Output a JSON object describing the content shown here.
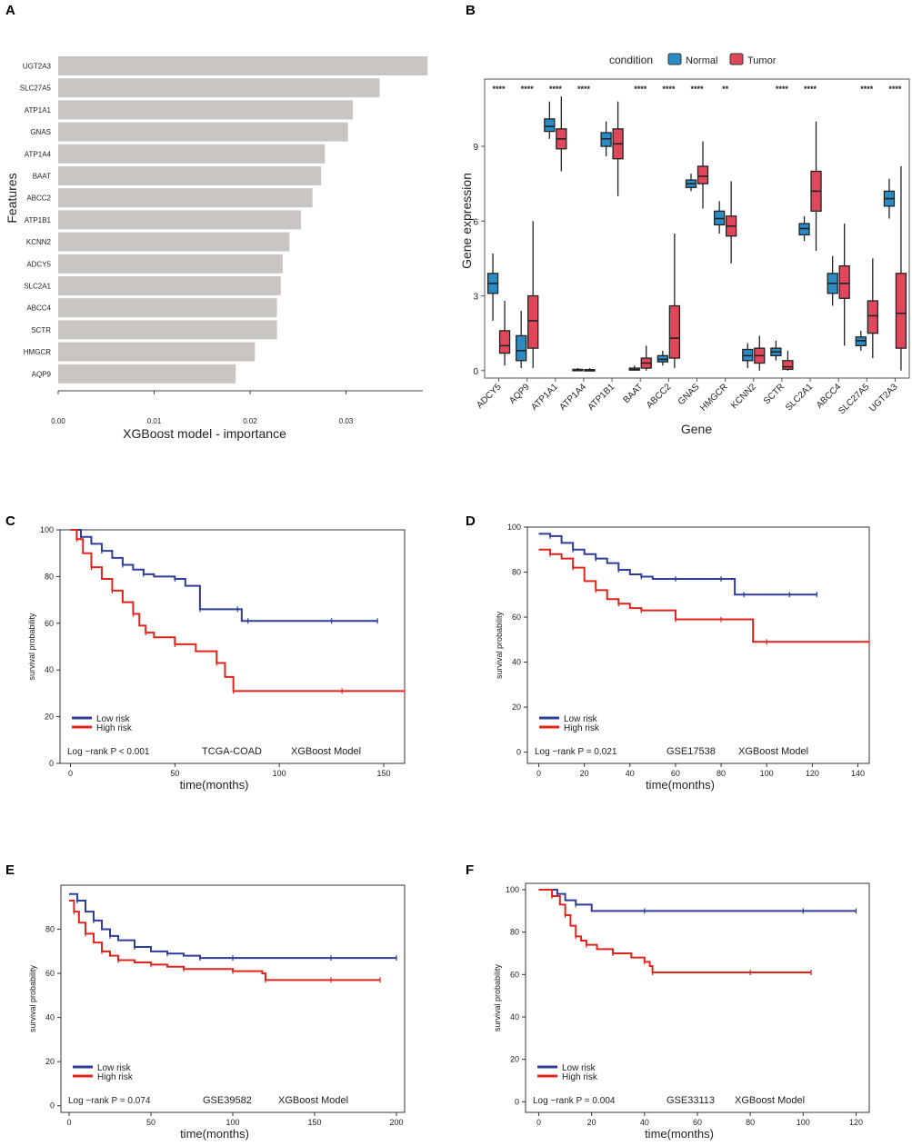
{
  "panel_labels": {
    "a": "A",
    "b": "B",
    "c": "C",
    "d": "D",
    "e": "E",
    "f": "F"
  },
  "colors": {
    "bar": "#c8c5c2",
    "normal": "#2b8cc4",
    "tumor": "#e0475b",
    "low": "#2e3c9a",
    "high": "#e0241b"
  },
  "chart_data": [
    {
      "id": "A",
      "type": "bar",
      "orientation": "horizontal",
      "categories": [
        "UGT2A3",
        "SLC27A5",
        "ATP1A1",
        "GNAS",
        "ATP1A4",
        "BAAT",
        "ABCC2",
        "ATP1B1",
        "KCNN2",
        "ADCY5",
        "SLC2A1",
        "ABCC4",
        "SCTR",
        "HMGCR",
        "AQP9"
      ],
      "values": [
        0.0385,
        0.0335,
        0.0307,
        0.0302,
        0.0278,
        0.0274,
        0.0265,
        0.0253,
        0.0241,
        0.0234,
        0.0232,
        0.0228,
        0.0228,
        0.0205,
        0.0185
      ],
      "xlabel": "XGBoost model - importance",
      "ylabel": "Features",
      "xlim": [
        0,
        0.038
      ],
      "xticks": [
        "0.00",
        "0.01",
        "0.02",
        "0.03"
      ]
    },
    {
      "id": "B",
      "type": "box",
      "legend_title": "condition",
      "legend": [
        "Normal",
        "Tumor"
      ],
      "xlabel": "Gene",
      "ylabel": "Gene expression",
      "ylim": [
        -0.3,
        11.7
      ],
      "yticks": [
        "0",
        "3",
        "6",
        "9"
      ],
      "categories": [
        "ADCY5",
        "AQP9",
        "ATP1A1",
        "ATP1A4",
        "ATP1B1",
        "BAAT",
        "ABCC2",
        "GNAS",
        "HMGCR",
        "KCNN2",
        "SCTR",
        "SLC2A1",
        "ABCC4",
        "SLC27A5",
        "UGT2A3"
      ],
      "significance": [
        "****",
        "****",
        "****",
        "****",
        "",
        "****",
        "****",
        "****",
        "**",
        "",
        "****",
        "****",
        "",
        "****",
        "****"
      ],
      "series": [
        {
          "name": "Normal",
          "boxes": [
            [
              2.0,
              3.1,
              3.5,
              3.9,
              4.7
            ],
            [
              0.1,
              0.4,
              0.8,
              1.4,
              2.4
            ],
            [
              9.3,
              9.6,
              9.8,
              10.1,
              10.8
            ],
            [
              0,
              0.01,
              0.03,
              0.05,
              0.1
            ],
            [
              8.6,
              9.0,
              9.3,
              9.55,
              10.0
            ],
            [
              0,
              0.02,
              0.04,
              0.1,
              0.2
            ],
            [
              0.2,
              0.35,
              0.45,
              0.6,
              0.8
            ],
            [
              7.2,
              7.35,
              7.5,
              7.65,
              7.9
            ],
            [
              5.5,
              5.85,
              6.1,
              6.4,
              6.8
            ],
            [
              0.1,
              0.4,
              0.6,
              0.85,
              1.1
            ],
            [
              0.4,
              0.6,
              0.75,
              0.9,
              1.2
            ],
            [
              5.2,
              5.45,
              5.7,
              5.9,
              6.2
            ],
            [
              2.6,
              3.1,
              3.5,
              3.9,
              4.6
            ],
            [
              0.8,
              1.0,
              1.2,
              1.35,
              1.6
            ],
            [
              6.1,
              6.6,
              6.9,
              7.2,
              7.7
            ]
          ]
        },
        {
          "name": "Tumor",
          "boxes": [
            [
              0.2,
              0.7,
              1.0,
              1.6,
              2.8
            ],
            [
              0.1,
              0.9,
              2.0,
              3.0,
              6.0
            ],
            [
              8.0,
              8.9,
              9.3,
              9.7,
              11.0
            ],
            [
              0,
              0,
              0.02,
              0.04,
              0.1
            ],
            [
              7.0,
              8.5,
              9.1,
              9.7,
              10.8
            ],
            [
              0,
              0.1,
              0.3,
              0.5,
              1.0
            ],
            [
              0.1,
              0.5,
              1.3,
              2.6,
              5.5
            ],
            [
              6.5,
              7.5,
              7.8,
              8.2,
              9.2
            ],
            [
              4.3,
              5.4,
              5.8,
              6.2,
              7.6
            ],
            [
              0,
              0.3,
              0.6,
              0.9,
              1.4
            ],
            [
              0,
              0.05,
              0.15,
              0.4,
              0.8
            ],
            [
              4.8,
              6.4,
              7.2,
              8.0,
              10.0
            ],
            [
              1.0,
              2.9,
              3.5,
              4.2,
              5.9
            ],
            [
              0.5,
              1.5,
              2.2,
              2.8,
              4.5
            ],
            [
              0,
              0.9,
              2.3,
              3.9,
              8.2
            ]
          ]
        }
      ]
    },
    {
      "id": "C",
      "type": "line",
      "subtype": "kaplan-meier",
      "xlabel": "time(months)",
      "ylabel": "survival probability",
      "xlim": [
        -5,
        160
      ],
      "ylim": [
        0,
        100
      ],
      "xticks": [
        "0",
        "50",
        "100",
        "150"
      ],
      "yticks": [
        "0",
        "20",
        "40",
        "60",
        "80",
        "100"
      ],
      "legend": [
        "Low risk",
        "High risk"
      ],
      "annotations": [
        "Log −rank P < 0.001",
        "TCGA-COAD",
        "XGBoost Model"
      ],
      "series": [
        {
          "name": "Low risk",
          "x": [
            0,
            5,
            10,
            15,
            20,
            25,
            30,
            35,
            40,
            50,
            55,
            62,
            70,
            80,
            82,
            85,
            100,
            125,
            140,
            147
          ],
          "y": [
            100,
            97,
            94,
            91,
            88,
            85,
            83,
            81,
            80,
            79,
            76,
            66,
            66,
            66,
            61,
            61,
            61,
            61,
            61,
            61
          ]
        },
        {
          "name": "High risk",
          "x": [
            0,
            3,
            6,
            10,
            15,
            20,
            25,
            30,
            33,
            36,
            40,
            50,
            60,
            70,
            74,
            78,
            100,
            130,
            150,
            160
          ],
          "y": [
            100,
            96,
            90,
            84,
            79,
            74,
            69,
            64,
            59,
            56,
            54,
            51,
            48,
            43,
            37,
            31,
            31,
            31,
            31,
            31
          ]
        }
      ]
    },
    {
      "id": "D",
      "type": "line",
      "subtype": "kaplan-meier",
      "xlabel": "time(months)",
      "ylabel": "survival probability",
      "xlim": [
        -5,
        145
      ],
      "ylim": [
        -5,
        100
      ],
      "xticks": [
        "0",
        "20",
        "40",
        "60",
        "80",
        "100",
        "120",
        "140"
      ],
      "yticks": [
        "0",
        "20",
        "40",
        "60",
        "80",
        "100"
      ],
      "legend": [
        "Low risk",
        "High risk"
      ],
      "annotations": [
        "Log −rank P = 0.021",
        "GSE17538",
        "XGBoost Model"
      ],
      "series": [
        {
          "name": "Low risk",
          "x": [
            0,
            5,
            10,
            15,
            20,
            25,
            30,
            35,
            40,
            45,
            50,
            60,
            70,
            80,
            86,
            90,
            100,
            110,
            122
          ],
          "y": [
            97,
            96,
            93,
            90,
            88,
            86,
            84,
            81,
            79,
            78,
            77,
            77,
            77,
            77,
            70,
            70,
            70,
            70,
            70
          ]
        },
        {
          "name": "High risk",
          "x": [
            0,
            5,
            10,
            15,
            20,
            25,
            30,
            35,
            40,
            45,
            55,
            60,
            70,
            80,
            94,
            100,
            120,
            145
          ],
          "y": [
            90,
            88,
            86,
            82,
            76,
            72,
            68,
            66,
            64,
            63,
            63,
            59,
            59,
            59,
            49,
            49,
            49,
            49
          ]
        }
      ]
    },
    {
      "id": "E",
      "type": "line",
      "subtype": "kaplan-meier",
      "xlabel": "time(months)",
      "ylabel": "survival probability",
      "xlim": [
        -5,
        205
      ],
      "ylim": [
        -3,
        100
      ],
      "xticks": [
        "0",
        "50",
        "100",
        "150",
        "200"
      ],
      "yticks": [
        "0",
        "20",
        "40",
        "60",
        "80"
      ],
      "legend": [
        "Low risk",
        "High risk"
      ],
      "annotations": [
        "Log −rank P = 0.074",
        "GSE39582",
        "XGBoost Model"
      ],
      "series": [
        {
          "name": "Low risk",
          "x": [
            0,
            5,
            10,
            15,
            20,
            25,
            30,
            40,
            50,
            60,
            70,
            80,
            90,
            100,
            130,
            160,
            200
          ],
          "y": [
            96,
            93,
            88,
            84,
            80,
            77,
            75,
            72,
            70,
            69,
            68,
            67,
            67,
            67,
            67,
            67,
            67
          ]
        },
        {
          "name": "High risk",
          "x": [
            0,
            3,
            6,
            10,
            15,
            20,
            25,
            30,
            40,
            50,
            60,
            70,
            80,
            100,
            118,
            120,
            140,
            160,
            190
          ],
          "y": [
            93,
            88,
            83,
            78,
            74,
            70,
            68,
            66,
            65,
            64,
            63,
            62,
            62,
            61,
            60,
            57,
            57,
            57,
            57
          ]
        }
      ]
    },
    {
      "id": "F",
      "type": "line",
      "subtype": "kaplan-meier",
      "xlabel": "time(months)",
      "ylabel": "survival probability",
      "xlim": [
        -5,
        125
      ],
      "ylim": [
        -5,
        103
      ],
      "xticks": [
        "0",
        "20",
        "40",
        "60",
        "80",
        "100",
        "120"
      ],
      "yticks": [
        "0",
        "20",
        "40",
        "60",
        "80",
        "100"
      ],
      "legend": [
        "Low risk",
        "High risk"
      ],
      "annotations": [
        "Log −rank P = 0.004",
        "GSE33113",
        "XGBoost Model"
      ],
      "series": [
        {
          "name": "Low risk",
          "x": [
            0,
            7,
            10,
            14,
            20,
            40,
            80,
            100,
            120
          ],
          "y": [
            100,
            98,
            95,
            93,
            90,
            90,
            90,
            90,
            90
          ]
        },
        {
          "name": "High risk",
          "x": [
            0,
            5,
            8,
            10,
            12,
            14,
            16,
            18,
            22,
            28,
            35,
            40,
            42,
            43,
            60,
            80,
            103
          ],
          "y": [
            100,
            97,
            93,
            88,
            83,
            78,
            76,
            74,
            72,
            70,
            68,
            66,
            64,
            61,
            61,
            61,
            61
          ]
        }
      ]
    }
  ]
}
